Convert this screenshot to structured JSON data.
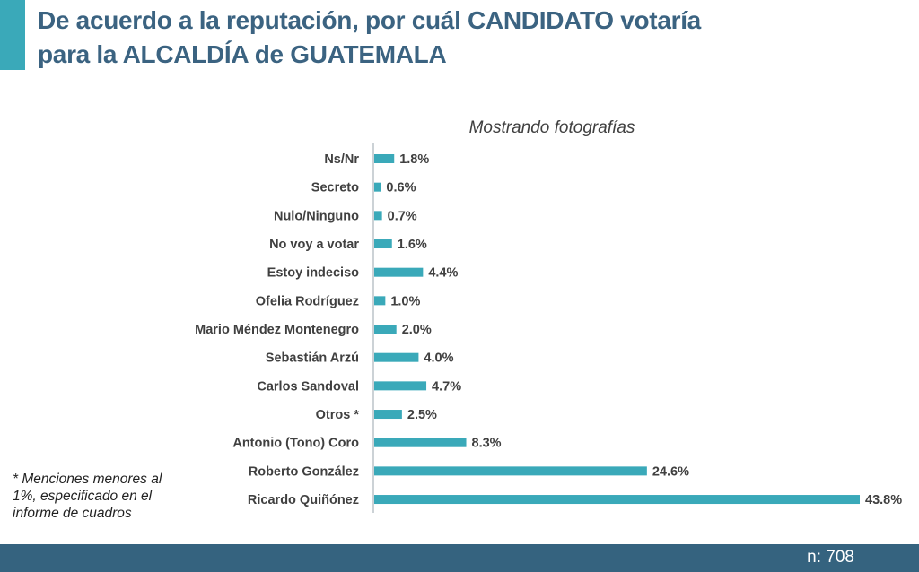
{
  "header": {
    "title_line1": "De acuerdo a la reputación, por cuál CANDIDATO votaría",
    "title_line2": "para la ALCALDÍA de GUATEMALA"
  },
  "note": "* Menciones menores al 1%, especificado en el informe de cuadros",
  "footer": {
    "sample": "n: 708"
  },
  "colors": {
    "bar": "#3aa9b9",
    "title": "#3b6381",
    "footer": "#35637f"
  },
  "chart_data": {
    "type": "bar",
    "orientation": "horizontal",
    "subtitle": "Mostrando fotografías",
    "categories": [
      "Ns/Nr",
      "Secreto",
      "Nulo/Ninguno",
      "No voy a votar",
      "Estoy indeciso",
      "Ofelia Rodríguez",
      "Mario Méndez Montenegro",
      "Sebastián Arzú",
      "Carlos Sandoval",
      "Otros *",
      "Antonio (Tono) Coro",
      "Roberto González",
      "Ricardo Quiñónez"
    ],
    "values": [
      1.8,
      0.6,
      0.7,
      1.6,
      4.4,
      1.0,
      2.0,
      4.0,
      4.7,
      2.5,
      8.3,
      24.6,
      43.8
    ],
    "labels": [
      "1.8%",
      "0.6%",
      "0.7%",
      "1.6%",
      "4.4%",
      "1.0%",
      "2.0%",
      "4.0%",
      "4.7%",
      "2.5%",
      "8.3%",
      "24.6%",
      "43.8%"
    ],
    "xlim": [
      0,
      43.8
    ],
    "grid": false
  }
}
